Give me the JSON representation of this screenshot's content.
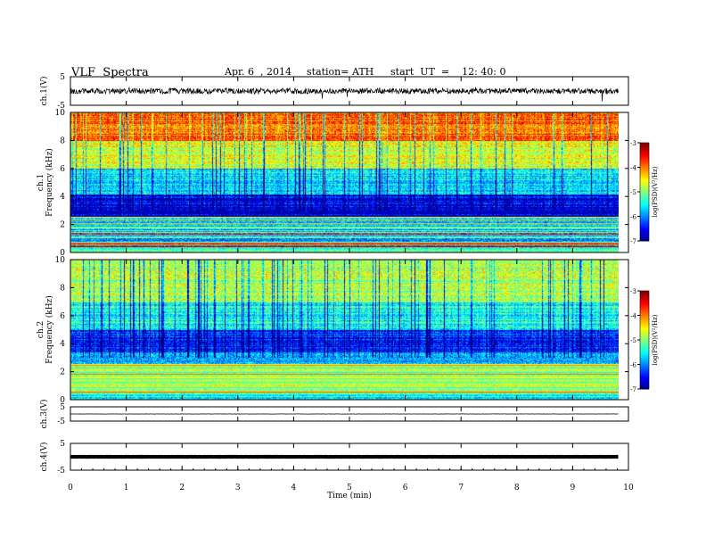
{
  "header": {
    "title": "VLF  Spectra",
    "date": "Apr. 6  , 2014",
    "station": "station= ATH",
    "start": "start  UT  =    12: 40: 0"
  },
  "chart_data": [
    {
      "type": "line",
      "ylabel": "ch.1(V)",
      "ylim": [
        -5,
        5
      ],
      "yticks": [
        "5",
        "-5"
      ],
      "series_level": 0.0,
      "noise_amplitude": 1.0
    },
    {
      "type": "heatmap",
      "ylabel": [
        "ch.1",
        "Frequency  (kHz)"
      ],
      "ylim": [
        0,
        10
      ],
      "yticks": [
        "10",
        "8",
        "6",
        "4",
        "2",
        "0"
      ],
      "colorbar": {
        "label": "log(PSD)(V²/Hz)",
        "range": [
          -7,
          -3
        ],
        "ticks": [
          "-3",
          "-4",
          "-5",
          "-6",
          "-7"
        ]
      },
      "bands": [
        {
          "from": 0,
          "to": 0.4,
          "level": -5.2
        },
        {
          "from": 0.4,
          "to": 0.8,
          "level": -3.4
        },
        {
          "from": 0.8,
          "to": 2.6,
          "level": -5.8
        },
        {
          "from": 2.6,
          "to": 4.2,
          "level": -6.6
        },
        {
          "from": 4.2,
          "to": 6,
          "level": -5.6
        },
        {
          "from": 6,
          "to": 8,
          "level": -4.6
        },
        {
          "from": 8,
          "to": 10,
          "level": -3.9
        }
      ]
    },
    {
      "type": "heatmap",
      "ylabel": [
        "ch.2",
        "Frequency  (kHz)"
      ],
      "ylim": [
        0,
        10
      ],
      "yticks": [
        "10",
        "8",
        "6",
        "4",
        "2",
        "0"
      ],
      "colorbar": {
        "label": "log(PSD)(V²/Hz)",
        "range": [
          -7,
          -3
        ],
        "ticks": [
          "-3",
          "-4",
          "-5",
          "-6",
          "-7"
        ]
      },
      "bands": [
        {
          "from": 0,
          "to": 0.5,
          "level": -5.6
        },
        {
          "from": 0.5,
          "to": 2.5,
          "level": -4.8
        },
        {
          "from": 2.5,
          "to": 3.4,
          "level": -5.8
        },
        {
          "from": 3.4,
          "to": 5,
          "level": -6.4
        },
        {
          "from": 5,
          "to": 7,
          "level": -5.4
        },
        {
          "from": 7,
          "to": 10,
          "level": -4.8
        }
      ]
    },
    {
      "type": "line",
      "ylabel": "ch.3(V)",
      "ylim": [
        -5,
        5
      ],
      "yticks": [
        "5",
        "-5"
      ],
      "series_level": 0.0,
      "noise_amplitude": 0.1
    },
    {
      "type": "line",
      "ylabel": "ch.4(V)",
      "ylim": [
        -5,
        5
      ],
      "yticks": [
        "5",
        "-5"
      ],
      "series_level": 0.0,
      "noise_amplitude": 0.05
    }
  ],
  "xaxis": {
    "label": "Time  (min)",
    "range": [
      0,
      10
    ],
    "data_end": 9.82,
    "ticks": [
      "0",
      "1",
      "2",
      "3",
      "4",
      "5",
      "6",
      "7",
      "8",
      "9",
      "10"
    ]
  }
}
